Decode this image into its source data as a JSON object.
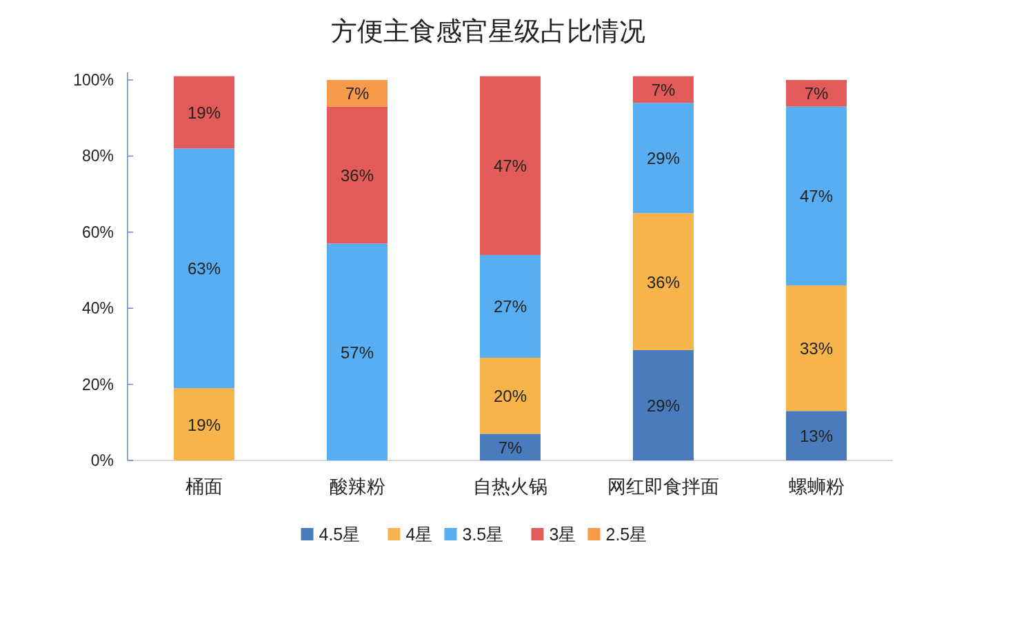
{
  "chart_data": {
    "type": "bar",
    "stacked": true,
    "title": "方便主食感官星级占比情况",
    "categories": [
      "桶面",
      "酸辣粉",
      "自热火锅",
      "网红即食拌面",
      "螺蛳粉"
    ],
    "series": [
      {
        "name": "4.5星",
        "color": "#4a7cbd",
        "values": [
          null,
          null,
          7,
          29,
          13
        ],
        "value_labels": [
          null,
          null,
          "7%",
          "29%",
          "13%"
        ]
      },
      {
        "name": "4星",
        "color": "#f7b44a",
        "values": [
          19,
          null,
          20,
          36,
          33
        ],
        "value_labels": [
          "19%",
          null,
          "20%",
          "36%",
          "33%"
        ]
      },
      {
        "name": "3.5星",
        "color": "#57aef2",
        "values": [
          63,
          57,
          27,
          29,
          47
        ],
        "value_labels": [
          "63%",
          "57%",
          "27%",
          "29%",
          "47%"
        ]
      },
      {
        "name": "3星",
        "color": "#e35b59",
        "values": [
          19,
          36,
          47,
          7,
          7
        ],
        "value_labels": [
          "19%",
          "36%",
          "47%",
          "7%",
          "7%"
        ]
      },
      {
        "name": "2.5星",
        "color": "#f79a4a",
        "values": [
          null,
          7,
          null,
          null,
          null
        ],
        "value_labels": [
          null,
          "7%",
          null,
          null,
          null
        ]
      }
    ],
    "ylim": [
      0,
      102
    ],
    "yticks": [
      {
        "value": 0,
        "label": "0%"
      },
      {
        "value": 20,
        "label": "20%"
      },
      {
        "value": 40,
        "label": "40%"
      },
      {
        "value": 60,
        "label": "60%"
      },
      {
        "value": 80,
        "label": "80%"
      },
      {
        "value": 100,
        "label": "100%"
      }
    ],
    "legend": "bottom"
  }
}
